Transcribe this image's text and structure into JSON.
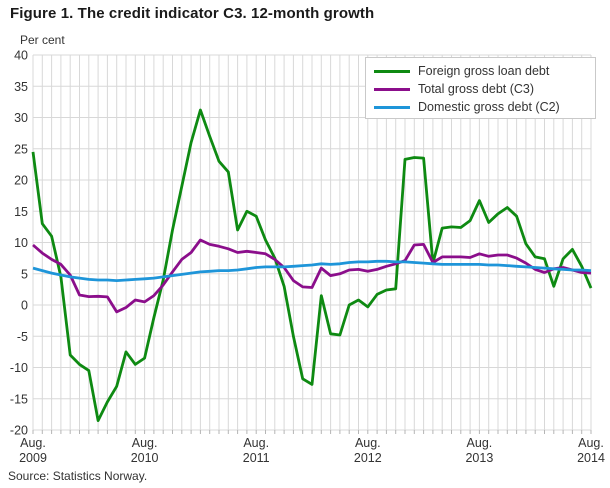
{
  "figure": {
    "title": "Figure 1. The credit indicator C3. 12-month growth",
    "unit_label": "Per cent",
    "source": "Source: Statistics Norway."
  },
  "chart_data": {
    "type": "line",
    "title": "Figure 1. The credit indicator C3. 12-month growth",
    "ylabel": "Per cent",
    "ylim": [
      -20,
      40
    ],
    "ytick_step": 5,
    "grid": true,
    "legend_position": "top-right",
    "x_unit": "month",
    "x_range": [
      "Aug. 2009",
      "Aug. 2014"
    ],
    "x_tick_labels": [
      {
        "i": 0,
        "line1": "Aug.",
        "line2": "2009"
      },
      {
        "i": 12,
        "line1": "Aug.",
        "line2": "2010"
      },
      {
        "i": 24,
        "line1": "Aug.",
        "line2": "2011"
      },
      {
        "i": 36,
        "line1": "Aug.",
        "line2": "2012"
      },
      {
        "i": 48,
        "line1": "Aug.",
        "line2": "2013"
      },
      {
        "i": 60,
        "line1": "Aug.",
        "line2": "2014"
      }
    ],
    "colors": {
      "grid": "#d8d8d8",
      "tick": "#b5b5b5",
      "axis_text": "#333333"
    },
    "series": [
      {
        "name": "Foreign gross loan debt",
        "color": "#0e8a12",
        "values": [
          24.5,
          13,
          11,
          4.5,
          -8,
          -9.5,
          -10.5,
          -18.5,
          -15.5,
          -13,
          -7.5,
          -9.5,
          -8.5,
          -2,
          4,
          12,
          19,
          26,
          31.2,
          27,
          23,
          21.3,
          12,
          15,
          14.2,
          10.4,
          7.5,
          3,
          -5,
          -11.8,
          -12.7,
          1.5,
          -4.6,
          -4.8,
          0,
          0.8,
          -0.3,
          1.7,
          2.4,
          2.6,
          23.3,
          23.6,
          23.5,
          6.7,
          12.3,
          12.5,
          12.4,
          13.5,
          16.7,
          13.2,
          14.6,
          15.6,
          14.2,
          9.8,
          7.7,
          7.4,
          3,
          7.4,
          8.9,
          6.2,
          2.7
        ]
      },
      {
        "name": "Total gross debt (C3)",
        "color": "#8b0e8b",
        "values": [
          9.6,
          8.3,
          7.3,
          6.5,
          4.8,
          1.6,
          1.35,
          1.4,
          1.3,
          -1.1,
          -0.4,
          0.8,
          0.5,
          1.5,
          3.2,
          5.3,
          7.3,
          8.4,
          10.4,
          9.7,
          9.4,
          9.0,
          8.4,
          8.6,
          8.4,
          8.2,
          7.3,
          6.0,
          3.9,
          2.9,
          2.8,
          5.9,
          4.7,
          5.0,
          5.6,
          5.7,
          5.4,
          5.7,
          6.2,
          6.6,
          7.1,
          9.6,
          9.7,
          6.8,
          7.7,
          7.7,
          7.7,
          7.6,
          8.2,
          7.8,
          8.0,
          8.0,
          7.5,
          6.7,
          5.7,
          5.2,
          5.8,
          6.0,
          5.6,
          5.2,
          5.1
        ]
      },
      {
        "name": "Domestic gross debt (C2)",
        "color": "#1e95d9",
        "values": [
          5.9,
          5.5,
          5.1,
          4.8,
          4.5,
          4.3,
          4.1,
          4.0,
          4.0,
          3.9,
          4.0,
          4.1,
          4.2,
          4.3,
          4.5,
          4.7,
          4.9,
          5.1,
          5.3,
          5.4,
          5.5,
          5.5,
          5.6,
          5.8,
          6.0,
          6.1,
          6.1,
          6.1,
          6.2,
          6.3,
          6.4,
          6.6,
          6.5,
          6.6,
          6.8,
          6.9,
          6.9,
          7.0,
          7.0,
          6.9,
          6.9,
          6.8,
          6.7,
          6.6,
          6.5,
          6.5,
          6.5,
          6.5,
          6.5,
          6.4,
          6.4,
          6.3,
          6.2,
          6.1,
          6.0,
          5.9,
          5.8,
          5.7,
          5.6,
          5.6,
          5.5
        ]
      }
    ]
  }
}
